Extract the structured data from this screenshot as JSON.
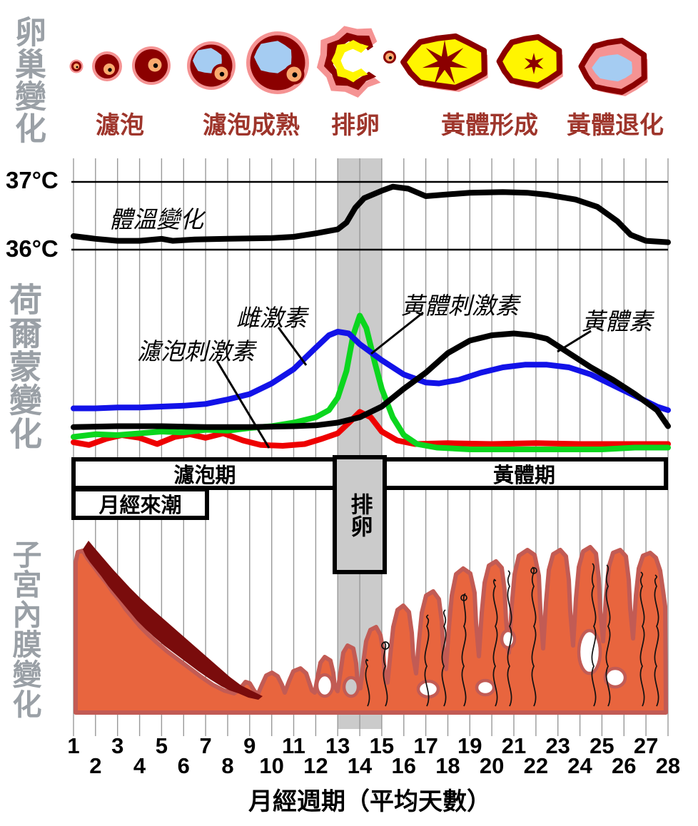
{
  "sections": {
    "ovary": {
      "label": "卵巢變化",
      "stages": [
        {
          "label": "濾泡"
        },
        {
          "label": "濾泡成熟"
        },
        {
          "label": "排卵"
        },
        {
          "label": "黃體形成"
        },
        {
          "label": "黃體退化"
        }
      ]
    },
    "temperature": {
      "tick_37": "37°C",
      "tick_36": "36°C"
    },
    "hormones": {
      "label": "荷爾蒙變化"
    },
    "phases": {
      "follicular": {
        "label": "濾泡期",
        "days": [
          1,
          13
        ]
      },
      "ovulation": {
        "label": "排卵",
        "days": [
          13,
          15
        ]
      },
      "luteal": {
        "label": "黃體期",
        "days": [
          15,
          28
        ]
      },
      "menses": {
        "label": "月經來潮",
        "days": [
          1,
          7
        ]
      }
    },
    "endometrium": {
      "label": "子宮內膜變化"
    }
  },
  "axis": {
    "days": [
      1,
      2,
      3,
      4,
      5,
      6,
      7,
      8,
      9,
      10,
      11,
      12,
      13,
      14,
      15,
      16,
      17,
      18,
      19,
      20,
      21,
      22,
      23,
      24,
      25,
      26,
      27,
      28
    ],
    "title": "月經週期（平均天數）"
  },
  "colors": {
    "temperature": "#000000",
    "fsh": "#EE0000",
    "lh": "#0BD61E",
    "estrogen": "#1212E8",
    "progesterone": "#000000",
    "band": "#CBCBCB",
    "stage_label": "#9E352B",
    "section_label": "#9AA0A6",
    "follicle_wall": "#8B0000",
    "follicle_ring": "#F59393",
    "antrum_blue": "#A5CCF2",
    "oocyte_orange": "#F9A96E",
    "corpus_yellow": "#FFF500",
    "endometrium_fill": "#E8653E",
    "endometrium_border": "#C25B54",
    "shed_layer": "#7A0C0C"
  },
  "chart_data": [
    {
      "id": "temperature",
      "type": "line",
      "x_label": "月經週期（平均天數）",
      "x_range": [
        1,
        28
      ],
      "y_unit": "°C",
      "y_ticks": [
        36,
        37
      ],
      "grid": true,
      "series": [
        {
          "name": "體溫變化",
          "color_key": "temperature",
          "points": [
            [
              1,
              36.2
            ],
            [
              2,
              36.16
            ],
            [
              3,
              36.13
            ],
            [
              4,
              36.13
            ],
            [
              5,
              36.16
            ],
            [
              5.5,
              36.13
            ],
            [
              6.5,
              36.15
            ],
            [
              8,
              36.16
            ],
            [
              10,
              36.17
            ],
            [
              11,
              36.19
            ],
            [
              12,
              36.24
            ],
            [
              13,
              36.3
            ],
            [
              13.4,
              36.4
            ],
            [
              13.8,
              36.62
            ],
            [
              14.2,
              36.76
            ],
            [
              15,
              36.87
            ],
            [
              15.5,
              36.93
            ],
            [
              16.2,
              36.9
            ],
            [
              17,
              36.79
            ],
            [
              17.8,
              36.81
            ],
            [
              19,
              36.84
            ],
            [
              20.5,
              36.85
            ],
            [
              21.6,
              36.84
            ],
            [
              22.5,
              36.81
            ],
            [
              23.8,
              36.74
            ],
            [
              24.8,
              36.63
            ],
            [
              25.7,
              36.42
            ],
            [
              26.3,
              36.22
            ],
            [
              27,
              36.13
            ],
            [
              28,
              36.11
            ]
          ]
        }
      ]
    },
    {
      "id": "hormones",
      "type": "line",
      "x_range": [
        1,
        28
      ],
      "y_unit": "relative level 0-100",
      "grid": true,
      "series": [
        {
          "name": "濾泡刺激素",
          "color_key": "fsh",
          "points": [
            [
              1,
              8
            ],
            [
              1.7,
              6.5
            ],
            [
              2.5,
              10
            ],
            [
              3.2,
              12
            ],
            [
              4,
              10.5
            ],
            [
              4.8,
              7
            ],
            [
              5.6,
              11
            ],
            [
              6.3,
              12.5
            ],
            [
              7,
              10.5
            ],
            [
              7.8,
              13
            ],
            [
              8.7,
              9
            ],
            [
              9.5,
              6.5
            ],
            [
              10.5,
              6
            ],
            [
              11.5,
              7
            ],
            [
              12.3,
              10
            ],
            [
              13,
              13
            ],
            [
              13.6,
              20
            ],
            [
              14,
              25
            ],
            [
              14.5,
              22
            ],
            [
              15,
              14
            ],
            [
              15.7,
              9
            ],
            [
              16.5,
              7
            ],
            [
              18,
              7.5
            ],
            [
              20,
              7
            ],
            [
              22,
              7.5
            ],
            [
              24,
              7
            ],
            [
              26,
              7
            ],
            [
              28,
              7
            ]
          ]
        },
        {
          "name": "黃體刺激素",
          "color_key": "lh",
          "points": [
            [
              1,
              11
            ],
            [
              2,
              12.5
            ],
            [
              3,
              12
            ],
            [
              4,
              13
            ],
            [
              5,
              14
            ],
            [
              6,
              13.5
            ],
            [
              7,
              15
            ],
            [
              8,
              14.5
            ],
            [
              9,
              16
            ],
            [
              10,
              17
            ],
            [
              11,
              19
            ],
            [
              12,
              22
            ],
            [
              12.6,
              26
            ],
            [
              13,
              33
            ],
            [
              13.4,
              48
            ],
            [
              13.7,
              68
            ],
            [
              14,
              79
            ],
            [
              14.3,
              72
            ],
            [
              14.7,
              52
            ],
            [
              15,
              38
            ],
            [
              15.5,
              22
            ],
            [
              16,
              12
            ],
            [
              16.6,
              7
            ],
            [
              17.5,
              5
            ],
            [
              19,
              4
            ],
            [
              21,
              4
            ],
            [
              23,
              4
            ],
            [
              25,
              4
            ],
            [
              26.5,
              5
            ],
            [
              28,
              5
            ]
          ]
        },
        {
          "name": "雌激素",
          "color_key": "estrogen",
          "points": [
            [
              1,
              27
            ],
            [
              2,
              27
            ],
            [
              3,
              27.5
            ],
            [
              4,
              27.5
            ],
            [
              5,
              28
            ],
            [
              6,
              28.5
            ],
            [
              7,
              29.5
            ],
            [
              8,
              32
            ],
            [
              9,
              35
            ],
            [
              10,
              41
            ],
            [
              11,
              49
            ],
            [
              12,
              61
            ],
            [
              12.6,
              68
            ],
            [
              13,
              70
            ],
            [
              13.5,
              69
            ],
            [
              14,
              63
            ],
            [
              15,
              54
            ],
            [
              16,
              46
            ],
            [
              17,
              41.5
            ],
            [
              17.6,
              41
            ],
            [
              18.5,
              43
            ],
            [
              19.5,
              47
            ],
            [
              20.5,
              50
            ],
            [
              21.5,
              51.5
            ],
            [
              22.5,
              51.5
            ],
            [
              23.5,
              50
            ],
            [
              24.5,
              46
            ],
            [
              25.5,
              40
            ],
            [
              26.5,
              34
            ],
            [
              27.5,
              28
            ],
            [
              28,
              26
            ]
          ]
        },
        {
          "name": "黃體素",
          "color_key": "progesterone",
          "points": [
            [
              1,
              16.5
            ],
            [
              3,
              17
            ],
            [
              5,
              17
            ],
            [
              7,
              16.5
            ],
            [
              9,
              16.5
            ],
            [
              11,
              17
            ],
            [
              12,
              17.5
            ],
            [
              13,
              19
            ],
            [
              14,
              22
            ],
            [
              15,
              28
            ],
            [
              16,
              38
            ],
            [
              17,
              47
            ],
            [
              18,
              58
            ],
            [
              19,
              65
            ],
            [
              20,
              68
            ],
            [
              21,
              69
            ],
            [
              21.8,
              68
            ],
            [
              22.5,
              66
            ],
            [
              23.5,
              58
            ],
            [
              24.5,
              50
            ],
            [
              25.5,
              43
            ],
            [
              26.5,
              35
            ],
            [
              27.5,
              26
            ],
            [
              28,
              17
            ]
          ]
        }
      ]
    }
  ]
}
